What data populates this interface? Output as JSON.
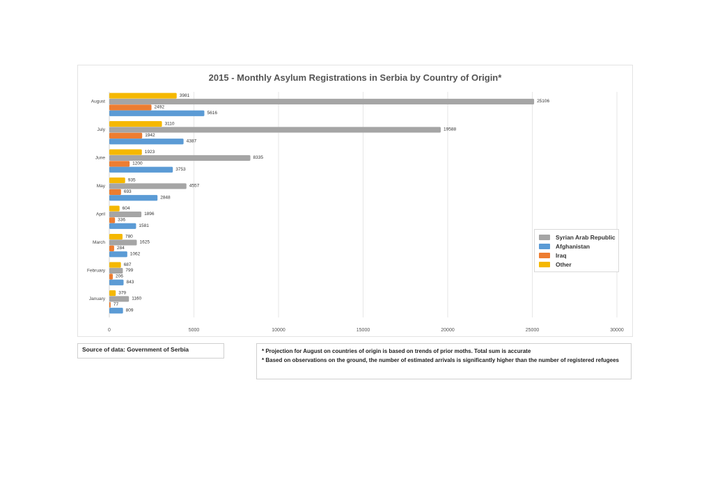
{
  "chart_data": {
    "type": "bar",
    "orientation": "horizontal",
    "title": "2015 - Monthly Asylum Registrations in Serbia by Country of Origin*",
    "categories": [
      "August",
      "July",
      "June",
      "May",
      "April",
      "March",
      "February",
      "January"
    ],
    "series": [
      {
        "name": "Other",
        "color": "#f5b800",
        "values": [
          3981,
          3110,
          1923,
          935,
          604,
          780,
          687,
          379
        ]
      },
      {
        "name": "Syrian Arab Republic",
        "color": "#a5a5a5",
        "values": [
          25106,
          19588,
          8335,
          4557,
          1896,
          1625,
          799,
          1160
        ]
      },
      {
        "name": "Iraq",
        "color": "#ed7d31",
        "values": [
          2492,
          1942,
          1200,
          693,
          336,
          284,
          206,
          77
        ]
      },
      {
        "name": "Afghanistan",
        "color": "#5b9bd5",
        "values": [
          5616,
          4387,
          3753,
          2848,
          1581,
          1062,
          843,
          809
        ]
      }
    ],
    "legend_order": [
      "Syrian Arab Republic",
      "Afghanistan",
      "Iraq",
      "Other"
    ],
    "xlim": [
      0,
      30000
    ],
    "xticks": [
      0,
      5000,
      10000,
      15000,
      20000,
      25000,
      30000
    ],
    "grid": true,
    "legend_position": "right"
  },
  "source_text": "Source of data: Government of Serbia",
  "notes": [
    "* Projection for August on countries of origin is based on trends of prior moths. Total sum is accurate",
    "* Based on observations on the ground, the number of estimated arrivals is significantly higher than the number of registered refugees"
  ]
}
